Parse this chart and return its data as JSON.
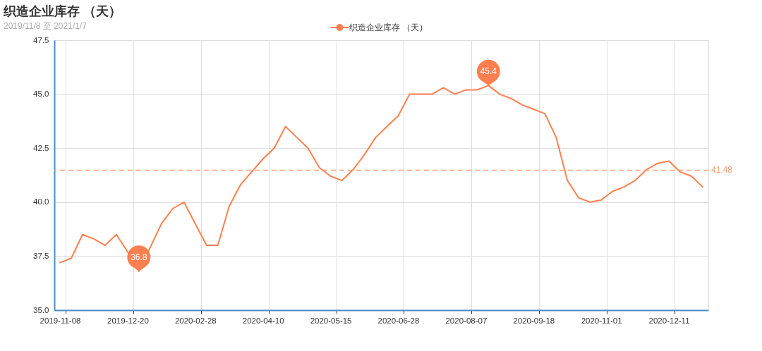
{
  "chart_data": {
    "type": "line",
    "title": "织造企业库存 （天）",
    "subtitle": "2019/11/8 至 2021/1/7",
    "categories": [
      "2019-11-08",
      null,
      null,
      null,
      null,
      null,
      "2019-12-20",
      null,
      null,
      null,
      null,
      null,
      "2020-02-28",
      null,
      null,
      null,
      null,
      null,
      "2020-04-10",
      null,
      null,
      null,
      null,
      null,
      "2020-05-15",
      null,
      null,
      null,
      null,
      null,
      "2020-06-28",
      null,
      null,
      null,
      null,
      null,
      "2020-08-07",
      null,
      null,
      null,
      null,
      null,
      "2020-09-18",
      null,
      null,
      null,
      null,
      null,
      "2020-11-01",
      null,
      null,
      null,
      null,
      null,
      "2020-12-11",
      null,
      null,
      null
    ],
    "series": [
      {
        "name": "织造企业库存 （天）",
        "color": "#ff7f50",
        "values": [
          37.2,
          37.4,
          38.5,
          38.3,
          38.0,
          38.5,
          37.7,
          36.8,
          37.9,
          39.0,
          39.7,
          40.0,
          39.0,
          38.0,
          38.0,
          39.8,
          40.8,
          41.4,
          42.0,
          42.5,
          43.5,
          43.0,
          42.5,
          41.6,
          41.2,
          41.0,
          41.5,
          42.2,
          43.0,
          43.5,
          44.0,
          45.0,
          45.0,
          45.0,
          45.3,
          45.0,
          45.2,
          45.2,
          45.4,
          45.0,
          44.8,
          44.5,
          44.3,
          44.1,
          43.0,
          41.0,
          40.2,
          40.0,
          40.1,
          40.5,
          40.7,
          41.0,
          41.5,
          41.8,
          41.9,
          41.4,
          41.2,
          40.7
        ]
      }
    ],
    "ylim": [
      35,
      47.5
    ],
    "yticks": [
      {
        "value": 35,
        "label": "35.0"
      },
      37.5,
      {
        "value": 40,
        "label": "40.0"
      },
      42.5,
      {
        "value": 45,
        "label": "45.0"
      },
      47.5
    ],
    "ref_lines": [
      {
        "axis": "y",
        "value": 41.48,
        "label": "41.48",
        "color": "#f9a07a",
        "line_style": "dashed"
      }
    ],
    "annotations": [
      {
        "text": "36.8",
        "y": 36.8
      },
      {
        "text": "45.4",
        "y": 45.4
      }
    ],
    "grid": true,
    "legend": "top"
  }
}
